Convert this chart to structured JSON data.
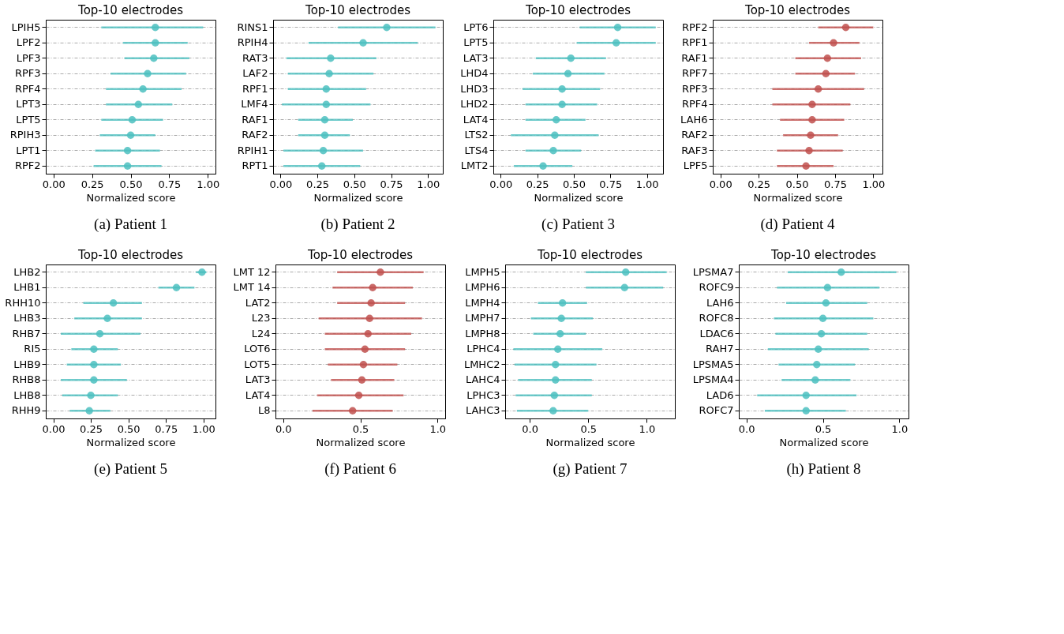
{
  "chart_data": [
    {
      "type": "scatter",
      "orientation": "horizontal",
      "title": "Top-10 electrodes",
      "xlabel": "Normalized score",
      "annotations": [
        "(a) Patient 1"
      ],
      "categories": [
        "LPIH5",
        "LPF2",
        "LPF3",
        "RPF3",
        "RPF4",
        "LPT3",
        "LPT5",
        "RPIH3",
        "LPT1",
        "RPF2"
      ],
      "series": [
        {
          "color": "#4cbfbf",
          "values": [
            0.66,
            0.66,
            0.65,
            0.61,
            0.58,
            0.55,
            0.51,
            0.5,
            0.48,
            0.48
          ],
          "errors": [
            [
              0.31,
              0.97
            ],
            [
              0.45,
              0.87
            ],
            [
              0.46,
              0.88
            ],
            [
              0.37,
              0.86
            ],
            [
              0.34,
              0.83
            ],
            [
              0.34,
              0.77
            ],
            [
              0.31,
              0.71
            ],
            [
              0.3,
              0.66
            ],
            [
              0.27,
              0.69
            ],
            [
              0.26,
              0.7
            ]
          ]
        }
      ],
      "xlim": [
        -0.05,
        1.05
      ],
      "xticks": [
        {
          "value": 0,
          "label": "0.00"
        },
        {
          "value": 0.25,
          "label": "0.25"
        },
        {
          "value": 0.5,
          "label": "0.50"
        },
        {
          "value": 0.75,
          "label": "0.75"
        },
        {
          "value": 1,
          "label": "1.00"
        }
      ],
      "grid": "y",
      "marker": "circle"
    },
    {
      "type": "scatter",
      "orientation": "horizontal",
      "title": "Top-10 electrodes",
      "xlabel": "Normalized score",
      "annotations": [
        "(b) Patient 2"
      ],
      "categories": [
        "RINS1",
        "RPIH4",
        "RAT3",
        "LAF2",
        "RPF1",
        "LMF4",
        "RAF1",
        "RAF2",
        "RPIH1",
        "RPT1"
      ],
      "series": [
        {
          "color": "#4cbfbf",
          "values": [
            0.72,
            0.56,
            0.34,
            0.33,
            0.31,
            0.31,
            0.3,
            0.3,
            0.29,
            0.28
          ],
          "errors": [
            [
              0.39,
              1.05
            ],
            [
              0.19,
              0.93
            ],
            [
              0.04,
              0.65
            ],
            [
              0.05,
              0.63
            ],
            [
              0.05,
              0.58
            ],
            [
              0.01,
              0.61
            ],
            [
              0.12,
              0.49
            ],
            [
              0.12,
              0.47
            ],
            [
              0.02,
              0.56
            ],
            [
              0.02,
              0.54
            ]
          ]
        }
      ],
      "xlim": [
        -0.05,
        1.1
      ],
      "xticks": [
        {
          "value": 0,
          "label": "0.00"
        },
        {
          "value": 0.25,
          "label": "0.25"
        },
        {
          "value": 0.5,
          "label": "0.50"
        },
        {
          "value": 0.75,
          "label": "0.75"
        },
        {
          "value": 1,
          "label": "1.00"
        }
      ],
      "grid": "y",
      "marker": "circle"
    },
    {
      "type": "scatter",
      "orientation": "horizontal",
      "title": "Top-10 electrodes",
      "xlabel": "Normalized score",
      "annotations": [
        "(c) Patient 3"
      ],
      "categories": [
        "LPT6",
        "LPT5",
        "LAT3",
        "LHD4",
        "LHD3",
        "LHD2",
        "LAT4",
        "LTS2",
        "LTS4",
        "LMT2"
      ],
      "series": [
        {
          "color": "#4cbfbf",
          "values": [
            0.8,
            0.79,
            0.48,
            0.46,
            0.42,
            0.42,
            0.38,
            0.37,
            0.36,
            0.29
          ],
          "errors": [
            [
              0.54,
              1.06
            ],
            [
              0.52,
              1.06
            ],
            [
              0.24,
              0.72
            ],
            [
              0.22,
              0.71
            ],
            [
              0.15,
              0.68
            ],
            [
              0.17,
              0.66
            ],
            [
              0.17,
              0.58
            ],
            [
              0.07,
              0.67
            ],
            [
              0.17,
              0.55
            ],
            [
              0.09,
              0.49
            ]
          ]
        }
      ],
      "xlim": [
        -0.05,
        1.11
      ],
      "xticks": [
        {
          "value": 0,
          "label": "0.00"
        },
        {
          "value": 0.25,
          "label": "0.25"
        },
        {
          "value": 0.5,
          "label": "0.50"
        },
        {
          "value": 0.75,
          "label": "0.75"
        },
        {
          "value": 1,
          "label": "1.00"
        }
      ],
      "grid": "y",
      "marker": "circle"
    },
    {
      "type": "scatter",
      "orientation": "horizontal",
      "title": "Top-10 electrodes",
      "xlabel": "Normalized score",
      "annotations": [
        "(d) Patient 4"
      ],
      "categories": [
        "RPF2",
        "RPF1",
        "RAF1",
        "RPF7",
        "RPF3",
        "RPF4",
        "LAH6",
        "RAF2",
        "RAF3",
        "LPF5"
      ],
      "series": [
        {
          "color": "#c0504d",
          "values": [
            0.82,
            0.74,
            0.7,
            0.69,
            0.64,
            0.6,
            0.6,
            0.59,
            0.58,
            0.56
          ],
          "errors": [
            [
              0.64,
              1.0
            ],
            [
              0.58,
              0.91
            ],
            [
              0.49,
              0.92
            ],
            [
              0.49,
              0.88
            ],
            [
              0.34,
              0.94
            ],
            [
              0.34,
              0.85
            ],
            [
              0.39,
              0.81
            ],
            [
              0.41,
              0.77
            ],
            [
              0.37,
              0.8
            ],
            [
              0.37,
              0.74
            ]
          ]
        }
      ],
      "xlim": [
        -0.05,
        1.06
      ],
      "xticks": [
        {
          "value": 0,
          "label": "0.00"
        },
        {
          "value": 0.25,
          "label": "0.25"
        },
        {
          "value": 0.5,
          "label": "0.50"
        },
        {
          "value": 0.75,
          "label": "0.75"
        },
        {
          "value": 1,
          "label": "1.00"
        }
      ],
      "grid": "y",
      "marker": "circle"
    },
    {
      "type": "scatter",
      "orientation": "horizontal",
      "title": "Top-10 electrodes",
      "xlabel": "Normalized score",
      "annotations": [
        "(e) Patient 5"
      ],
      "categories": [
        "LHB2",
        "LHB1",
        "RHH10",
        "LHB3",
        "RHB7",
        "RI5",
        "LHB9",
        "RHB8",
        "LHB8",
        "RHH9"
      ],
      "series": [
        {
          "color": "#4cbfbf",
          "values": [
            0.99,
            0.82,
            0.4,
            0.36,
            0.31,
            0.27,
            0.27,
            0.27,
            0.25,
            0.24
          ],
          "errors": [
            [
              0.95,
              1.02
            ],
            [
              0.7,
              0.94
            ],
            [
              0.2,
              0.59
            ],
            [
              0.14,
              0.59
            ],
            [
              0.05,
              0.58
            ],
            [
              0.12,
              0.43
            ],
            [
              0.09,
              0.45
            ],
            [
              0.05,
              0.49
            ],
            [
              0.06,
              0.43
            ],
            [
              0.11,
              0.38
            ]
          ]
        }
      ],
      "xlim": [
        -0.05,
        1.08
      ],
      "xticks": [
        {
          "value": 0,
          "label": "0.00"
        },
        {
          "value": 0.25,
          "label": "0.25"
        },
        {
          "value": 0.5,
          "label": "0.50"
        },
        {
          "value": 0.75,
          "label": "0.75"
        },
        {
          "value": 1,
          "label": "1.00"
        }
      ],
      "grid": "y",
      "marker": "circle"
    },
    {
      "type": "scatter",
      "orientation": "horizontal",
      "title": "Top-10 electrodes",
      "xlabel": "Normalized score",
      "annotations": [
        "(f) Patient 6"
      ],
      "categories": [
        "LMT 12",
        "LMT 14",
        "LAT2",
        "L23",
        "L24",
        "LOT6",
        "LOT5",
        "LAT3",
        "LAT4",
        "L8"
      ],
      "series": [
        {
          "color": "#c0504d",
          "values": [
            0.63,
            0.58,
            0.57,
            0.56,
            0.55,
            0.53,
            0.52,
            0.51,
            0.49,
            0.45
          ],
          "errors": [
            [
              0.35,
              0.91
            ],
            [
              0.32,
              0.84
            ],
            [
              0.35,
              0.79
            ],
            [
              0.23,
              0.9
            ],
            [
              0.27,
              0.83
            ],
            [
              0.27,
              0.79
            ],
            [
              0.29,
              0.74
            ],
            [
              0.31,
              0.72
            ],
            [
              0.22,
              0.78
            ],
            [
              0.19,
              0.71
            ]
          ]
        }
      ],
      "xlim": [
        -0.05,
        1.05
      ],
      "xticks": [
        {
          "value": 0,
          "label": "0.0"
        },
        {
          "value": 0.5,
          "label": "0.5"
        },
        {
          "value": 1,
          "label": "1.0"
        }
      ],
      "grid": "y",
      "marker": "circle"
    },
    {
      "type": "scatter",
      "orientation": "horizontal",
      "title": "Top-10 electrodes",
      "xlabel": "Normalized score",
      "annotations": [
        "(g) Patient 7"
      ],
      "categories": [
        "LMPH5",
        "LMPH6",
        "LMPH4",
        "LMPH7",
        "LMPH8",
        "LPHC4",
        "LMHC2",
        "LAHC4",
        "LPHC3",
        "LAHC3"
      ],
      "series": [
        {
          "color": "#4cbfbf",
          "values": [
            0.82,
            0.81,
            0.28,
            0.27,
            0.26,
            0.24,
            0.22,
            0.22,
            0.21,
            0.2
          ],
          "errors": [
            [
              0.48,
              1.17
            ],
            [
              0.48,
              1.14
            ],
            [
              0.07,
              0.49
            ],
            [
              0.01,
              0.54
            ],
            [
              0.03,
              0.48
            ],
            [
              -0.14,
              0.62
            ],
            [
              -0.13,
              0.57
            ],
            [
              -0.1,
              0.53
            ],
            [
              -0.12,
              0.53
            ],
            [
              -0.11,
              0.5
            ]
          ]
        }
      ],
      "xlim": [
        -0.21,
        1.24
      ],
      "xticks": [
        {
          "value": 0,
          "label": "0.0"
        },
        {
          "value": 0.5,
          "label": "0.5"
        },
        {
          "value": 1,
          "label": "1.0"
        }
      ],
      "grid": "y",
      "marker": "circle"
    },
    {
      "type": "scatter",
      "orientation": "horizontal",
      "title": "Top-10 electrodes",
      "xlabel": "Normalized score",
      "annotations": [
        "(h) Patient 8"
      ],
      "categories": [
        "LPSMA7",
        "ROFC9",
        "LAH6",
        "ROFC8",
        "LDAC6",
        "RAH7",
        "LPSMA5",
        "LPSMA4",
        "LAD6",
        "ROFC7"
      ],
      "series": [
        {
          "color": "#4cbfbf",
          "values": [
            0.62,
            0.53,
            0.52,
            0.5,
            0.49,
            0.47,
            0.46,
            0.45,
            0.39,
            0.39
          ],
          "errors": [
            [
              0.27,
              0.98
            ],
            [
              0.2,
              0.87
            ],
            [
              0.26,
              0.79
            ],
            [
              0.18,
              0.83
            ],
            [
              0.19,
              0.79
            ],
            [
              0.14,
              0.8
            ],
            [
              0.21,
              0.71
            ],
            [
              0.23,
              0.68
            ],
            [
              0.07,
              0.72
            ],
            [
              0.12,
              0.65
            ]
          ]
        }
      ],
      "xlim": [
        -0.05,
        1.06
      ],
      "xticks": [
        {
          "value": 0,
          "label": "0.0"
        },
        {
          "value": 0.5,
          "label": "0.5"
        },
        {
          "value": 1,
          "label": "1.0"
        }
      ],
      "grid": "y",
      "marker": "circle"
    }
  ]
}
